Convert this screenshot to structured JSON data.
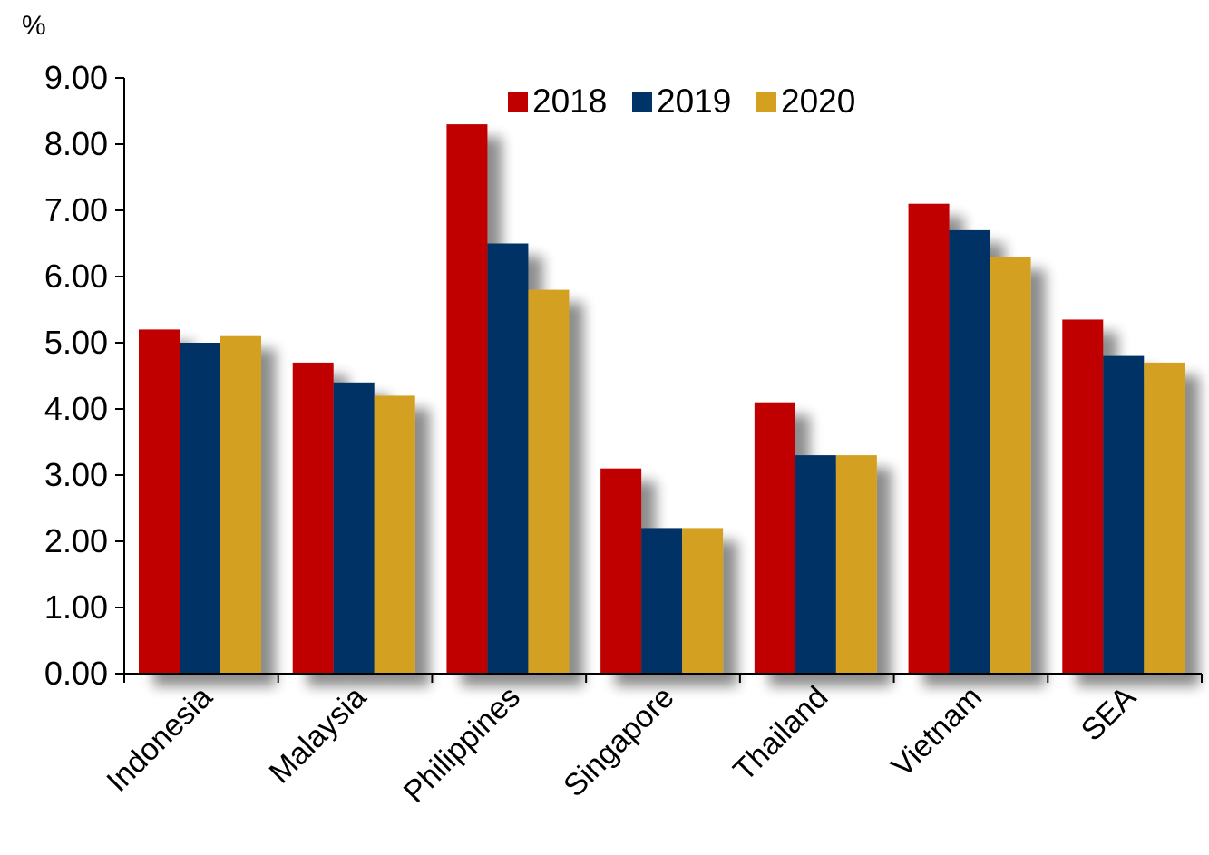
{
  "chart_data": {
    "type": "bar",
    "title": "",
    "xlabel": "",
    "ylabel": "",
    "unit_label": "%",
    "categories": [
      "Indonesia",
      "Malaysia",
      "Philippines",
      "Singapore",
      "Thailand",
      "Vietnam",
      "SEA"
    ],
    "series": [
      {
        "name": "2018",
        "color": "#C00000",
        "values": [
          5.2,
          4.7,
          8.3,
          3.1,
          4.1,
          7.1,
          5.35
        ]
      },
      {
        "name": "2019",
        "color": "#003366",
        "values": [
          5.0,
          4.4,
          6.5,
          2.2,
          3.3,
          6.7,
          4.8
        ]
      },
      {
        "name": "2020",
        "color": "#D4A020",
        "values": [
          5.1,
          4.2,
          5.8,
          2.2,
          3.3,
          6.3,
          4.7
        ]
      }
    ],
    "ylim": [
      0,
      9
    ],
    "yticks": [
      "0.00",
      "1.00",
      "2.00",
      "3.00",
      "4.00",
      "5.00",
      "6.00",
      "7.00",
      "8.00",
      "9.00"
    ],
    "grid": false,
    "legend_position": "top-center"
  }
}
